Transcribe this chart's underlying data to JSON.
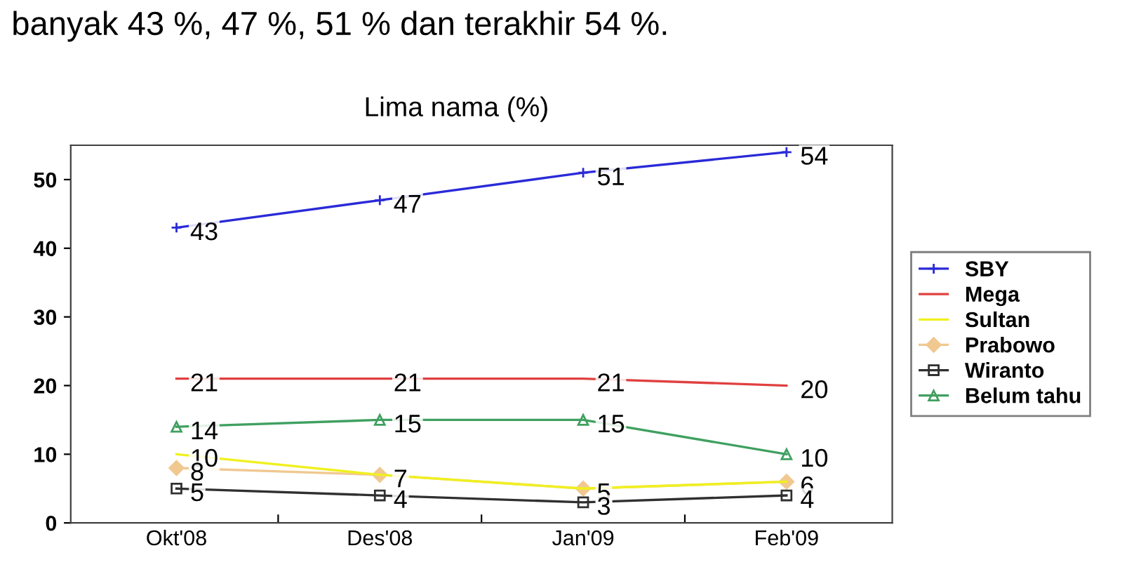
{
  "chart_data": {
    "type": "line",
    "title": "Lima nama (%)",
    "annotations": [
      "banyak 43 %, 47 %, 51 % dan terakhir 54 %."
    ],
    "categories": [
      "Okt'08",
      "Des'08",
      "Jan'09",
      "Feb'09"
    ],
    "series": [
      {
        "name": "SBY",
        "color": "#2a2ad8",
        "marker": "cross",
        "values": [
          43,
          47,
          51,
          54
        ],
        "value_labels": [
          "43",
          "47",
          "51",
          "54"
        ]
      },
      {
        "name": "Mega",
        "color": "#e04040",
        "marker": "none",
        "values": [
          21,
          21,
          21,
          20
        ],
        "value_labels": [
          "21",
          "21",
          "21",
          "20"
        ]
      },
      {
        "name": "Sultan",
        "color": "#f0f020",
        "marker": "none",
        "values": [
          10,
          7,
          5,
          6
        ],
        "value_labels": [
          "10",
          null,
          null,
          null
        ]
      },
      {
        "name": "Prabowo",
        "color": "#f0c890",
        "marker": "diamond",
        "values": [
          8,
          7,
          5,
          6
        ],
        "value_labels": [
          "8",
          "7",
          "5",
          "6"
        ]
      },
      {
        "name": "Wiranto",
        "color": "#303030",
        "marker": "square",
        "values": [
          5,
          4,
          3,
          4
        ],
        "value_labels": [
          "5",
          "4",
          "3",
          "4"
        ]
      },
      {
        "name": "Belum tahu",
        "color": "#40a060",
        "marker": "triangle",
        "values": [
          14,
          15,
          15,
          10
        ],
        "value_labels": [
          "14",
          "15",
          "15",
          "10"
        ]
      }
    ],
    "ylim": [
      0,
      55
    ],
    "yticks": [
      0,
      10,
      20,
      30,
      40,
      50
    ],
    "grid": false,
    "legend": "right"
  }
}
